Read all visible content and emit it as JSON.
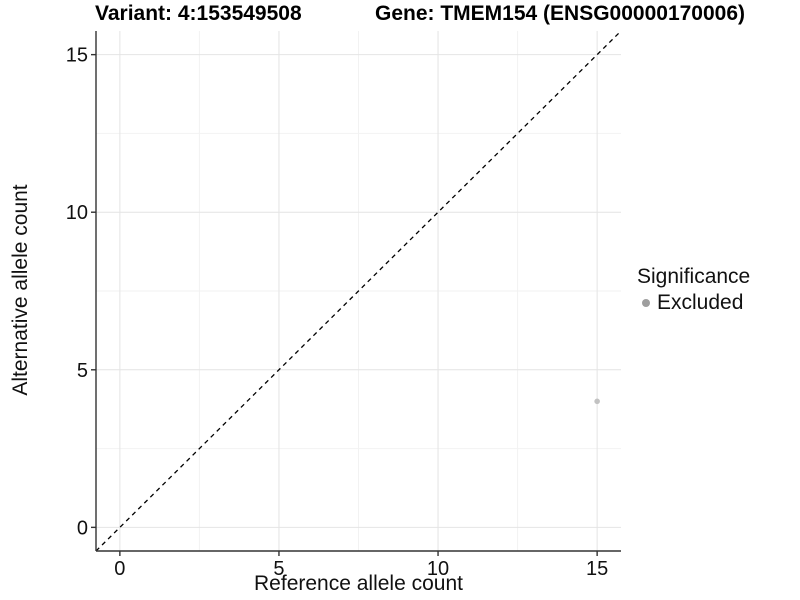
{
  "titles": {
    "variant": "Variant: 4:153549508",
    "gene": "Gene: TMEM154 (ENSG00000170006)"
  },
  "chart_data": {
    "type": "scatter",
    "xlabel": "Reference allele count",
    "ylabel": "Alternative allele count",
    "xlim": [
      -0.75,
      15.75
    ],
    "ylim": [
      -0.75,
      15.75
    ],
    "x_ticks": [
      0,
      5,
      10,
      15
    ],
    "y_ticks": [
      0,
      5,
      10,
      15
    ],
    "x_minor_ticks": [
      2.5,
      7.5,
      12.5
    ],
    "y_minor_ticks": [
      2.5,
      7.5,
      12.5
    ],
    "grid": true,
    "reference_line": {
      "kind": "identity y=x",
      "style": "dashed",
      "color": "#000000"
    },
    "series": [
      {
        "name": "Excluded",
        "color": "#c2c2c2",
        "points": [
          {
            "x": 15,
            "y": 4
          }
        ]
      }
    ],
    "legend": {
      "title": "Significance",
      "position": "right",
      "items": [
        {
          "label": "Excluded",
          "color": "#9e9e9e"
        }
      ]
    },
    "colors": {
      "background": "#ffffff",
      "grid_major": "#e4e4e4",
      "grid_minor": "#f2f2f2",
      "axis_line": "#333333",
      "tick_mark": "#333333",
      "text": "#111111"
    }
  }
}
